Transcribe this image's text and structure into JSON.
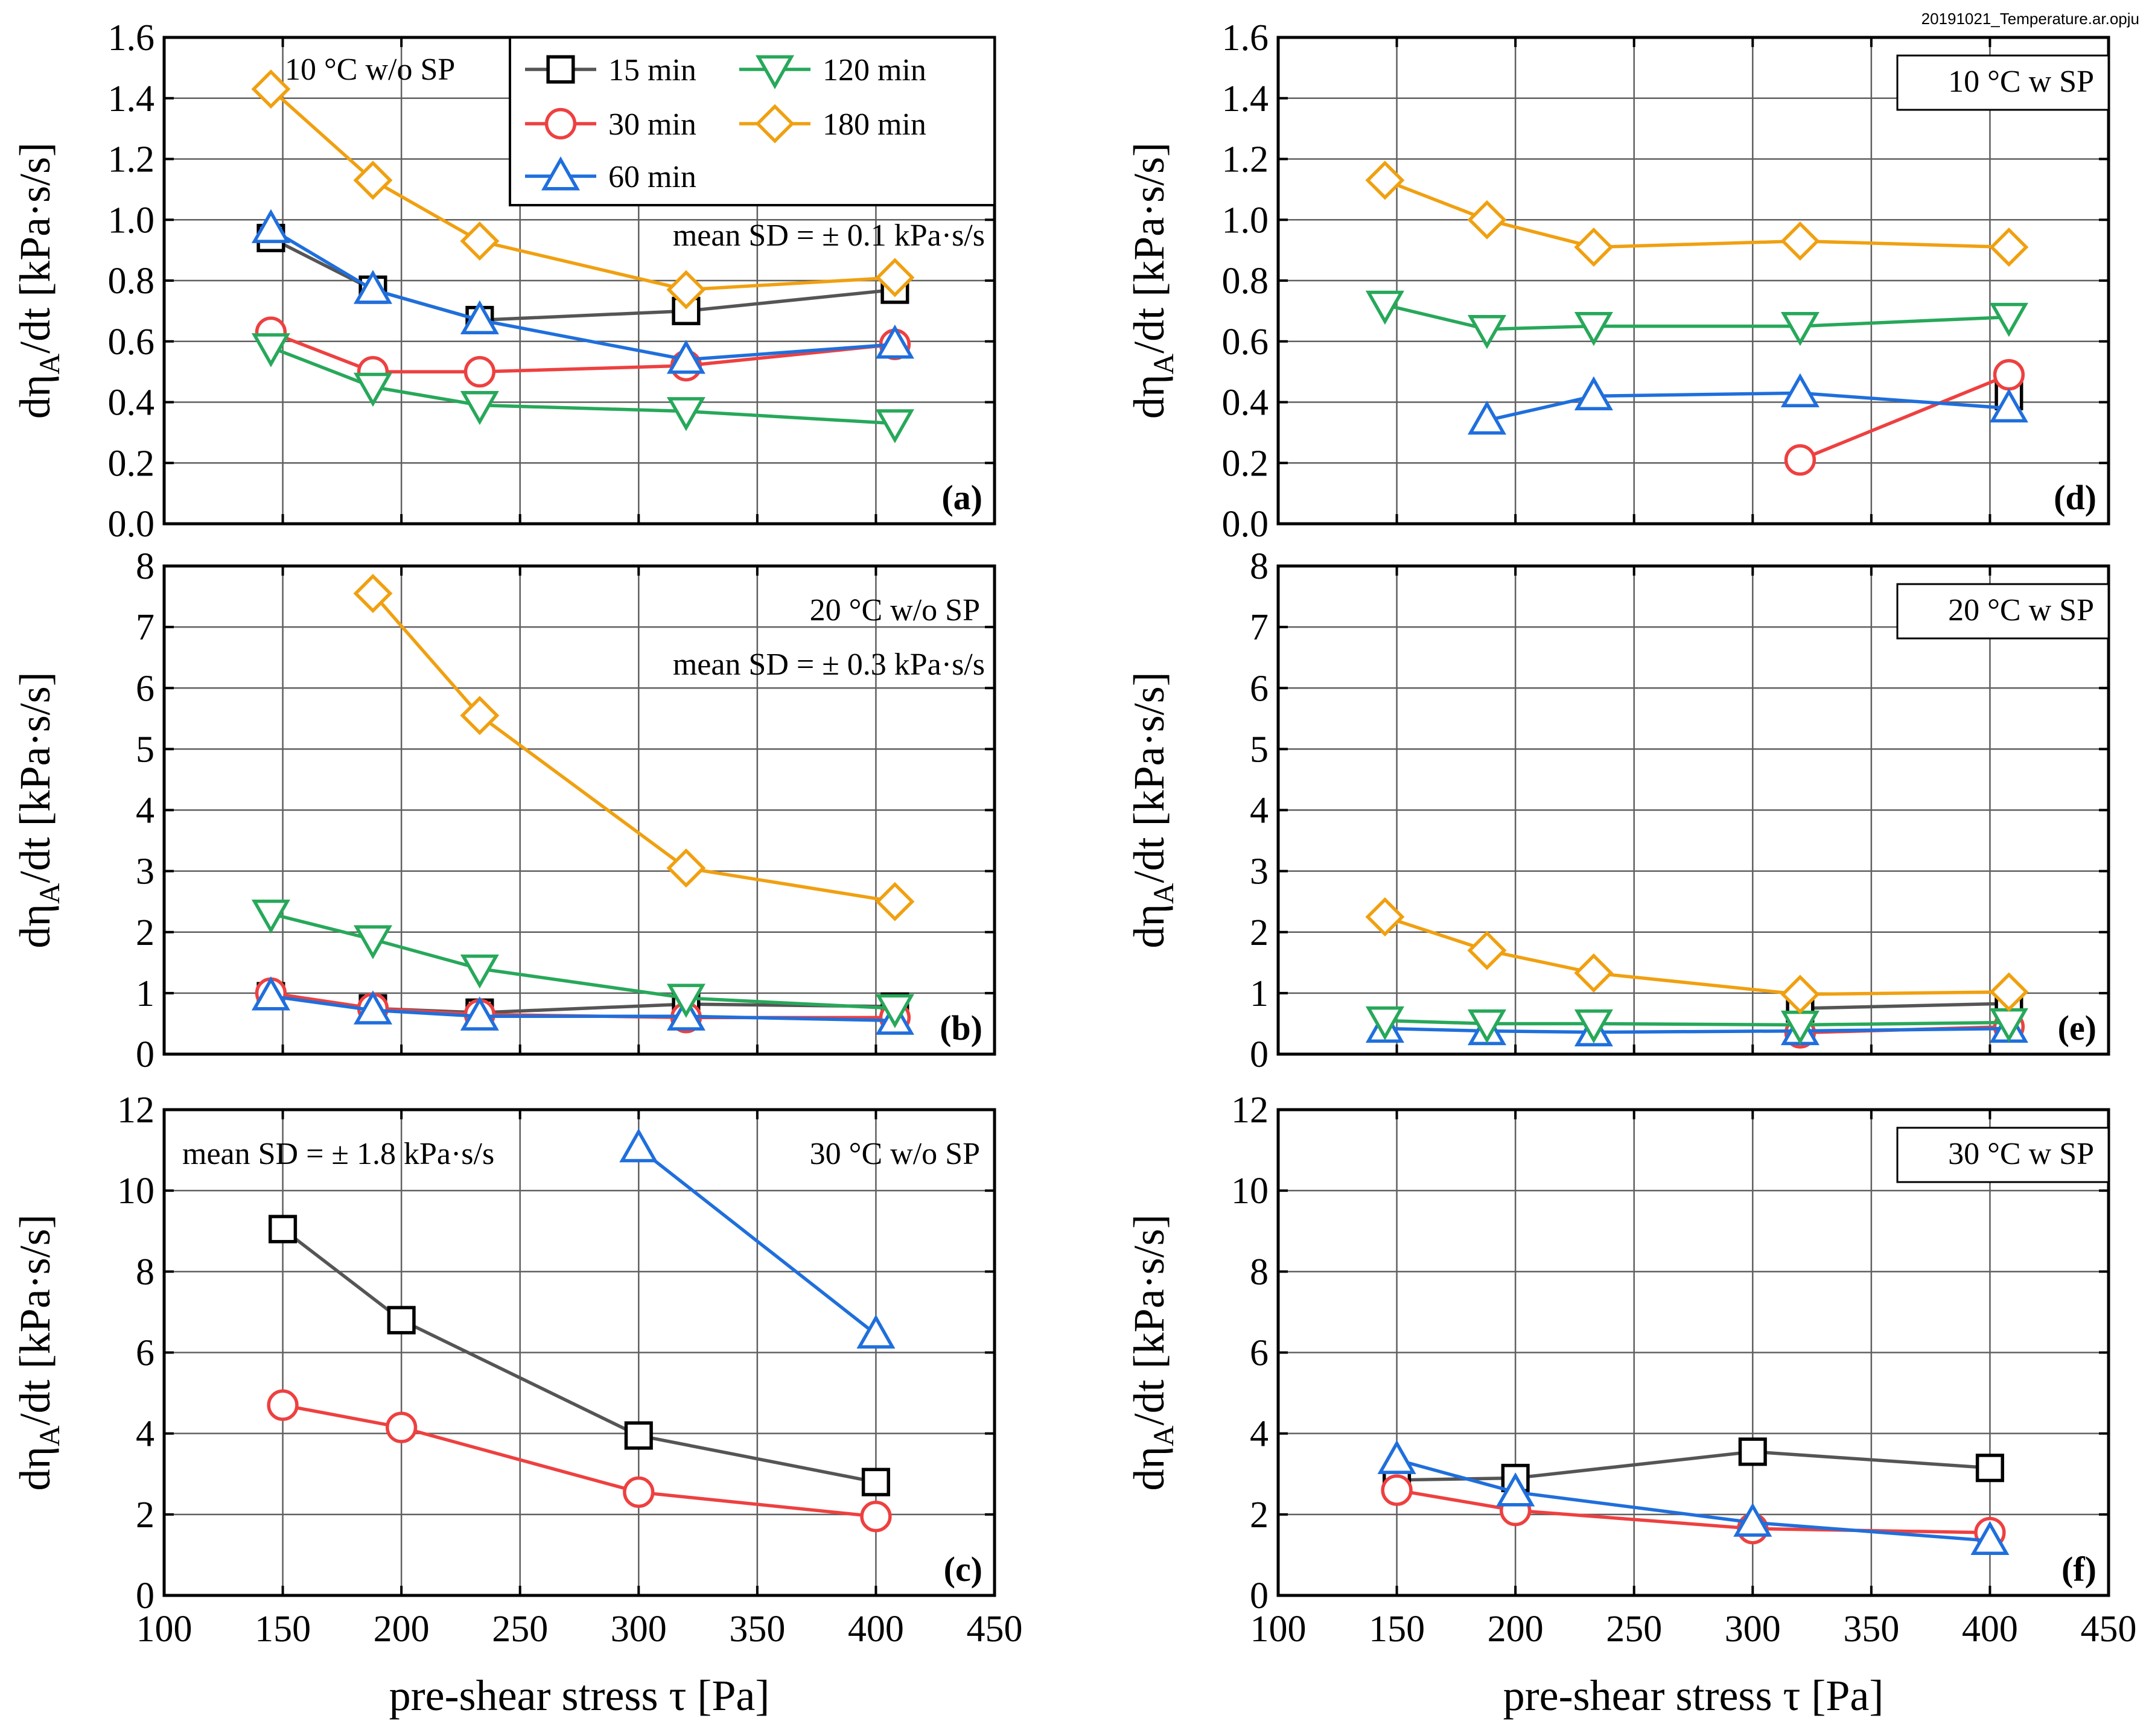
{
  "figure": {
    "filename": "20191021_Temperature.ar.opju",
    "x_label": "pre-shear stress τ [Pa]",
    "y_label_prefix": "dη",
    "y_label_sub": "A",
    "y_label_suffix": "/dt [kPa·s/s]"
  },
  "colors": {
    "15 min": "#000000",
    "30 min": "#ee4040",
    "60 min": "#1f6fdc",
    "120 min": "#27a85a",
    "180 min": "#f0a010",
    "grid": "#606060",
    "frame": "#000000"
  },
  "legend": {
    "entries": [
      {
        "label": "15 min",
        "marker": "square"
      },
      {
        "label": "120 min",
        "marker": "triangle-down"
      },
      {
        "label": "30 min",
        "marker": "circle"
      },
      {
        "label": "180 min",
        "marker": "diamond"
      },
      {
        "label": "60 min",
        "marker": "triangle-up"
      }
    ]
  },
  "chart_data": [
    {
      "id": "a",
      "type": "line",
      "panel_label": "(a)",
      "title": "10 °C w/o SP",
      "annotation": "mean SD = ± 0.1 kPa·s/s",
      "xlim": [
        100,
        450
      ],
      "ylim": [
        0,
        1.6
      ],
      "xticks": [
        100,
        150,
        200,
        250,
        300,
        350,
        400,
        450
      ],
      "yticks": [
        0.0,
        0.2,
        0.4,
        0.6,
        0.8,
        1.0,
        1.2,
        1.4,
        1.6
      ],
      "ytick_labels": [
        "0.0",
        "0.2",
        "0.4",
        "0.6",
        "0.8",
        "1.0",
        "1.2",
        "1.4",
        "1.6"
      ],
      "show_xtick_labels": false,
      "series": [
        {
          "name": "15 min",
          "marker": "square",
          "x": [
            145,
            188,
            233,
            320,
            408
          ],
          "y": [
            0.94,
            0.77,
            0.67,
            0.7,
            0.77
          ]
        },
        {
          "name": "30 min",
          "marker": "circle",
          "x": [
            145,
            188,
            233,
            320,
            408
          ],
          "y": [
            0.63,
            0.5,
            0.5,
            0.52,
            0.59
          ]
        },
        {
          "name": "60 min",
          "marker": "triangle-up",
          "x": [
            145,
            188,
            233,
            320,
            408
          ],
          "y": [
            0.97,
            0.77,
            0.67,
            0.54,
            0.59
          ]
        },
        {
          "name": "120 min",
          "marker": "triangle-down",
          "x": [
            145,
            188,
            233,
            320,
            408
          ],
          "y": [
            0.58,
            0.45,
            0.39,
            0.37,
            0.33
          ]
        },
        {
          "name": "180 min",
          "marker": "diamond",
          "x": [
            145,
            188,
            233,
            320,
            408
          ],
          "y": [
            1.43,
            1.13,
            0.93,
            0.77,
            0.81
          ]
        }
      ]
    },
    {
      "id": "b",
      "type": "line",
      "panel_label": "(b)",
      "title": "20 °C w/o SP",
      "annotation": "mean SD = ± 0.3 kPa·s/s",
      "xlim": [
        100,
        450
      ],
      "ylim": [
        0,
        8
      ],
      "xticks": [
        100,
        150,
        200,
        250,
        300,
        350,
        400,
        450
      ],
      "yticks": [
        0,
        1,
        2,
        3,
        4,
        5,
        6,
        7,
        8
      ],
      "ytick_labels": [
        "0",
        "1",
        "2",
        "3",
        "4",
        "5",
        "6",
        "7",
        "8"
      ],
      "show_xtick_labels": false,
      "series": [
        {
          "name": "15 min",
          "marker": "square",
          "x": [
            145,
            188,
            233,
            320,
            408
          ],
          "y": [
            0.95,
            0.75,
            0.68,
            0.82,
            0.78
          ]
        },
        {
          "name": "30 min",
          "marker": "circle",
          "x": [
            145,
            188,
            233,
            320,
            408
          ],
          "y": [
            1.0,
            0.75,
            0.65,
            0.6,
            0.6
          ]
        },
        {
          "name": "60 min",
          "marker": "triangle-up",
          "x": [
            145,
            188,
            233,
            320,
            408
          ],
          "y": [
            0.95,
            0.72,
            0.62,
            0.62,
            0.55
          ]
        },
        {
          "name": "120 min",
          "marker": "triangle-down",
          "x": [
            145,
            188,
            233,
            320,
            408
          ],
          "y": [
            2.3,
            1.88,
            1.4,
            0.92,
            0.75
          ]
        },
        {
          "name": "180 min",
          "marker": "diamond",
          "x": [
            188,
            233,
            320,
            408
          ],
          "y": [
            7.55,
            5.55,
            3.05,
            2.5
          ]
        }
      ]
    },
    {
      "id": "c",
      "type": "line",
      "panel_label": "(c)",
      "title": "30 °C w/o SP",
      "annotation": "mean SD = ± 1.8 kPa·s/s",
      "xlim": [
        100,
        450
      ],
      "ylim": [
        0,
        12
      ],
      "xticks": [
        100,
        150,
        200,
        250,
        300,
        350,
        400,
        450
      ],
      "xtick_labels": [
        "100",
        "150",
        "200",
        "250",
        "300",
        "350",
        "400",
        "450"
      ],
      "yticks": [
        0,
        2,
        4,
        6,
        8,
        10,
        12
      ],
      "ytick_labels": [
        "0",
        "2",
        "4",
        "6",
        "8",
        "10",
        "12"
      ],
      "show_xtick_labels": true,
      "series": [
        {
          "name": "15 min",
          "marker": "square",
          "x": [
            150,
            200,
            300,
            400
          ],
          "y": [
            9.05,
            6.8,
            3.95,
            2.8
          ]
        },
        {
          "name": "30 min",
          "marker": "circle",
          "x": [
            150,
            200,
            300,
            400
          ],
          "y": [
            4.7,
            4.15,
            2.55,
            1.95
          ]
        },
        {
          "name": "60 min",
          "marker": "triangle-up",
          "x": [
            300,
            400
          ],
          "y": [
            11.05,
            6.45
          ]
        }
      ]
    },
    {
      "id": "d",
      "type": "line",
      "panel_label": "(d)",
      "title": "10 °C w SP",
      "annotation": "",
      "xlim": [
        100,
        450
      ],
      "ylim": [
        0,
        1.6
      ],
      "xticks": [
        100,
        150,
        200,
        250,
        300,
        350,
        400,
        450
      ],
      "yticks": [
        0.0,
        0.2,
        0.4,
        0.6,
        0.8,
        1.0,
        1.2,
        1.4,
        1.6
      ],
      "ytick_labels": [
        "0.0",
        "0.2",
        "0.4",
        "0.6",
        "0.8",
        "1.0",
        "1.2",
        "1.4",
        "1.6"
      ],
      "show_xtick_labels": false,
      "series": [
        {
          "name": "15 min",
          "marker": "square",
          "x": [
            408
          ],
          "y": [
            0.42
          ]
        },
        {
          "name": "30 min",
          "marker": "circle",
          "x": [
            320,
            408
          ],
          "y": [
            0.21,
            0.49
          ]
        },
        {
          "name": "60 min",
          "marker": "triangle-up",
          "x": [
            188,
            233,
            320,
            408
          ],
          "y": [
            0.34,
            0.42,
            0.43,
            0.38
          ]
        },
        {
          "name": "120 min",
          "marker": "triangle-down",
          "x": [
            145,
            188,
            233,
            320,
            408
          ],
          "y": [
            0.72,
            0.64,
            0.65,
            0.65,
            0.68
          ]
        },
        {
          "name": "180 min",
          "marker": "diamond",
          "x": [
            145,
            188,
            233,
            320,
            408
          ],
          "y": [
            1.13,
            1.0,
            0.91,
            0.93,
            0.91
          ]
        }
      ]
    },
    {
      "id": "e",
      "type": "line",
      "panel_label": "(e)",
      "title": "20 °C w SP",
      "annotation": "",
      "xlim": [
        100,
        450
      ],
      "ylim": [
        0,
        8
      ],
      "xticks": [
        100,
        150,
        200,
        250,
        300,
        350,
        400,
        450
      ],
      "yticks": [
        0,
        1,
        2,
        3,
        4,
        5,
        6,
        7,
        8
      ],
      "ytick_labels": [
        "0",
        "1",
        "2",
        "3",
        "4",
        "5",
        "6",
        "7",
        "8"
      ],
      "show_xtick_labels": false,
      "series": [
        {
          "name": "15 min",
          "marker": "square",
          "x": [
            320,
            408
          ],
          "y": [
            0.75,
            0.83
          ]
        },
        {
          "name": "30 min",
          "marker": "circle",
          "x": [
            320,
            408
          ],
          "y": [
            0.35,
            0.45
          ]
        },
        {
          "name": "60 min",
          "marker": "triangle-up",
          "x": [
            145,
            188,
            233,
            320,
            408
          ],
          "y": [
            0.42,
            0.38,
            0.36,
            0.38,
            0.42
          ]
        },
        {
          "name": "120 min",
          "marker": "triangle-down",
          "x": [
            145,
            188,
            233,
            320,
            408
          ],
          "y": [
            0.55,
            0.5,
            0.5,
            0.48,
            0.52
          ]
        },
        {
          "name": "180 min",
          "marker": "diamond",
          "x": [
            145,
            188,
            233,
            320,
            408
          ],
          "y": [
            2.25,
            1.7,
            1.33,
            0.98,
            1.02
          ]
        }
      ]
    },
    {
      "id": "f",
      "type": "line",
      "panel_label": "(f)",
      "title": "30 °C w SP",
      "annotation": "",
      "xlim": [
        100,
        450
      ],
      "ylim": [
        0,
        12
      ],
      "xticks": [
        100,
        150,
        200,
        250,
        300,
        350,
        400,
        450
      ],
      "xtick_labels": [
        "100",
        "150",
        "200",
        "250",
        "300",
        "350",
        "400",
        "450"
      ],
      "yticks": [
        0,
        2,
        4,
        6,
        8,
        10,
        12
      ],
      "ytick_labels": [
        "0",
        "2",
        "4",
        "6",
        "8",
        "10",
        "12"
      ],
      "show_xtick_labels": true,
      "series": [
        {
          "name": "15 min",
          "marker": "square",
          "x": [
            150,
            200,
            300,
            400
          ],
          "y": [
            2.85,
            2.9,
            3.55,
            3.15
          ]
        },
        {
          "name": "30 min",
          "marker": "circle",
          "x": [
            150,
            200,
            300,
            400
          ],
          "y": [
            2.6,
            2.1,
            1.65,
            1.55
          ]
        },
        {
          "name": "60 min",
          "marker": "triangle-up",
          "x": [
            150,
            200,
            300,
            400
          ],
          "y": [
            3.35,
            2.55,
            1.8,
            1.35
          ]
        }
      ]
    }
  ]
}
